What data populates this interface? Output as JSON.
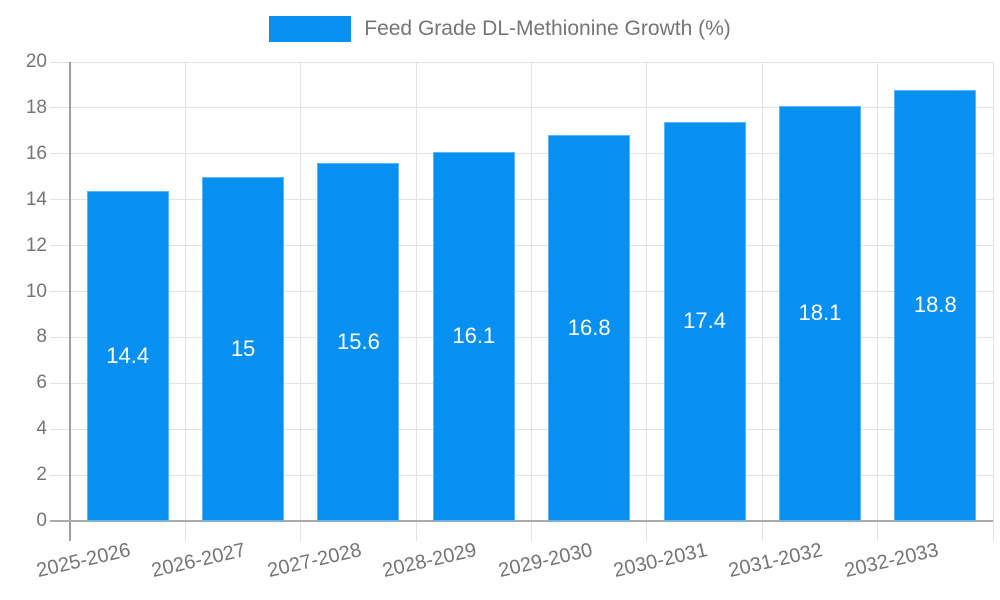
{
  "legend": {
    "label": "Feed Grade DL-Methionine Growth (%)"
  },
  "chart_data": {
    "type": "bar",
    "title": "Feed Grade DL-Methionine Growth (%)",
    "categories": [
      "2025-2026",
      "2026-2027",
      "2027-2028",
      "2028-2029",
      "2029-2030",
      "2030-2031",
      "2031-2032",
      "2032-2033"
    ],
    "values": [
      14.4,
      15,
      15.6,
      16.1,
      16.8,
      17.4,
      18.1,
      18.8
    ],
    "bar_labels": [
      "14.4",
      "15",
      "15.6",
      "16.1",
      "16.8",
      "17.4",
      "18.1",
      "18.8"
    ],
    "xlabel": "",
    "ylabel": "",
    "ylim": [
      0,
      20
    ],
    "ytick_step": 2,
    "ytick_labels": [
      "0",
      "2",
      "4",
      "6",
      "8",
      "10",
      "12",
      "14",
      "16",
      "18",
      "20"
    ],
    "grid": true,
    "legend_position": "top",
    "value_label_position": "center-of-bar"
  },
  "colors": {
    "bar": "#0590F2",
    "grid": "#e2e2e2",
    "axis_y": "#9e9e9e",
    "axis_x": "#ababab",
    "tick_text": "#757575",
    "legend_text": "#757575",
    "value_text": "#ffffff",
    "background": "#ffffff"
  }
}
